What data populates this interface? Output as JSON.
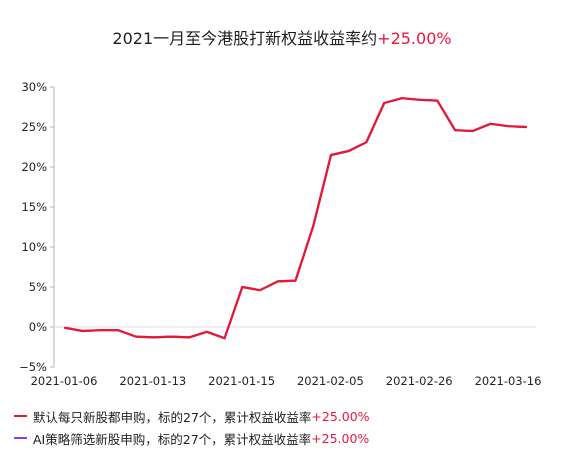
{
  "title": {
    "text": "2021一月至今港股打新权益收益率约",
    "highlight": "+25.00%"
  },
  "colors": {
    "series_1": "#e8182f",
    "series_2": "#8a3df0",
    "highlight": "#e8173f",
    "axis": "#b5b5b5",
    "grid": "#dddddd"
  },
  "chart_data": {
    "type": "line",
    "title": "2021一月至今港股打新权益收益率约+25.00%",
    "xlabel": "",
    "ylabel": "",
    "ylim": [
      -5,
      30
    ],
    "y_ticks": [
      -5,
      0,
      5,
      10,
      15,
      20,
      25,
      30
    ],
    "y_tick_labels": [
      "−5%",
      "0%",
      "5%",
      "10%",
      "15%",
      "20%",
      "25%",
      "30%"
    ],
    "x_tick_labels": [
      "2021-01-06",
      "2021-01-13",
      "2021-01-15",
      "2021-02-05",
      "2021-02-26",
      "2021-03-16"
    ],
    "series": [
      {
        "name": "默认每只新股都申购，标的27个，累计权益收益率",
        "values": [
          -0.1,
          -0.5,
          -0.4,
          -0.4,
          -1.2,
          -1.3,
          -1.2,
          -1.3,
          -0.6,
          -1.4,
          5.0,
          4.6,
          5.7,
          5.8,
          12.6,
          21.5,
          22.0,
          23.1,
          28.0,
          28.6,
          28.4,
          28.3,
          24.6,
          24.5,
          25.4,
          25.1,
          25.0
        ]
      },
      {
        "name": "AI策略筛选新股申购，标的27个，累计权益收益率",
        "values": [
          -0.1,
          -0.5,
          -0.4,
          -0.4,
          -1.2,
          -1.3,
          -1.2,
          -1.3,
          -0.6,
          -1.4,
          5.0,
          4.6,
          5.7,
          5.8,
          12.6,
          21.5,
          22.0,
          23.1,
          28.0,
          28.6,
          28.4,
          28.3,
          24.6,
          24.5,
          25.4,
          25.1,
          25.0
        ]
      }
    ],
    "grid": false,
    "legend_position": "bottom-left"
  },
  "legend": [
    {
      "label": "默认每只新股都申购，标的27个，累计权益收益率",
      "value": "+25.00%"
    },
    {
      "label": "AI策略筛选新股申购，标的27个，累计权益收益率",
      "value": "+25.00%"
    }
  ]
}
